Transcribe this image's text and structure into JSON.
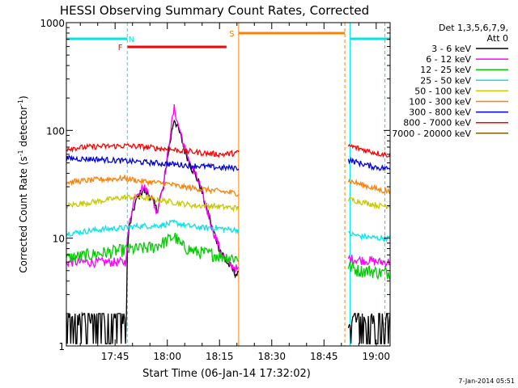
{
  "chart_data": {
    "type": "line",
    "title": "HESSI Observing Summary Count Rates, Corrected",
    "xlabel": "Start Time (06-Jan-14 17:32:02)",
    "ylabel_main": "Corrected Count Rate (s",
    "ylabel_sup1": "-1",
    "ylabel_mid": " detector",
    "ylabel_sup2": "-1",
    "ylabel_end": ")",
    "ylog": true,
    "ylim": [
      1,
      1000
    ],
    "xlim_min": [
      1051,
      1144
    ],
    "x_ticks": [
      {
        "m": 1065,
        "label": "17:45"
      },
      {
        "m": 1080,
        "label": "18:00"
      },
      {
        "m": 1095,
        "label": "18:15"
      },
      {
        "m": 1110,
        "label": "18:30"
      },
      {
        "m": 1125,
        "label": "18:45"
      },
      {
        "m": 1140,
        "label": "19:00"
      }
    ],
    "y_ticks": [
      {
        "v": 1,
        "label": "1"
      },
      {
        "v": 10,
        "label": "10"
      },
      {
        "v": 100,
        "label": "100"
      },
      {
        "v": 1000,
        "label": "1000"
      }
    ],
    "legend": {
      "header1": "Det 1,3,5,6,7,9,",
      "header2": "Att 0",
      "placement": "right"
    },
    "timestamp": "7-Jan-2014 05:51",
    "markers": [
      {
        "label": "N",
        "color": "#00e5e5"
      },
      {
        "label": "F",
        "color": "#ff0000"
      },
      {
        "label": "S",
        "color": "#ff8000"
      }
    ],
    "intervals": {
      "night": [
        [
          1051,
          1068.5
        ],
        [
          1132.5,
          1144
        ]
      ],
      "flare": [
        1068.5,
        1097
      ],
      "saa": [
        1100.5,
        1131
      ]
    },
    "gaps": [
      [
        1100.5,
        1132
      ]
    ],
    "series": [
      {
        "name": "3 - 6 keV",
        "color": "#000000",
        "t": [
          1051,
          1068,
          1069,
          1071,
          1073,
          1075,
          1077,
          1079,
          1080,
          1081,
          1082,
          1083,
          1085,
          1087,
          1089,
          1091,
          1093,
          1095,
          1097,
          1099,
          1100.3,
          1132.2,
          1135,
          1138,
          1141,
          1144
        ],
        "v": [
          1.4,
          1.5,
          12,
          22,
          28,
          25,
          18,
          30,
          55,
          85,
          130,
          105,
          65,
          45,
          33,
          20,
          12,
          8,
          6,
          5,
          4.5,
          1.6,
          1.5,
          1.5,
          1.4,
          1.4
        ]
      },
      {
        "name": "6 - 12 keV",
        "color": "#ff00ff",
        "t": [
          1051,
          1060,
          1068,
          1069,
          1071,
          1073,
          1075,
          1077,
          1079,
          1080,
          1081,
          1082,
          1083,
          1085,
          1087,
          1089,
          1091,
          1093,
          1095,
          1097,
          1099,
          1100.3,
          1132.2,
          1135,
          1138,
          1141,
          1144
        ],
        "v": [
          6,
          6,
          6,
          13,
          26,
          30,
          26,
          17,
          32,
          55,
          100,
          160,
          115,
          68,
          45,
          33,
          20,
          12,
          8,
          6,
          5.5,
          5,
          6.5,
          6.3,
          6.2,
          6,
          6
        ]
      },
      {
        "name": "12 - 25 keV",
        "color": "#00cc00",
        "t": [
          1051,
          1060,
          1068,
          1072,
          1076,
          1080,
          1082,
          1084,
          1088,
          1092,
          1096,
          1100.3,
          1132.2,
          1135,
          1138,
          1141,
          1144
        ],
        "v": [
          6.5,
          7.2,
          7.8,
          8,
          8.3,
          9.5,
          10.5,
          8.5,
          7.5,
          7.2,
          6.8,
          6.5,
          5.5,
          5,
          5,
          4.8,
          4.8
        ]
      },
      {
        "name": "25 - 50 keV",
        "color": "#00e5e5",
        "t": [
          1051,
          1060,
          1068,
          1072,
          1076,
          1080,
          1082,
          1086,
          1090,
          1094,
          1098,
          1100.3,
          1132.2,
          1135,
          1138,
          1141,
          1144
        ],
        "v": [
          11,
          12,
          12.5,
          13,
          13,
          13.5,
          14,
          13,
          12.5,
          12.5,
          12,
          12,
          11,
          10.5,
          10.2,
          10,
          10
        ]
      },
      {
        "name": "50 - 100 keV",
        "color": "#c8c800",
        "t": [
          1051,
          1060,
          1068,
          1072,
          1076,
          1080,
          1084,
          1088,
          1092,
          1096,
          1100.3,
          1132.2,
          1135,
          1138,
          1141,
          1144
        ],
        "v": [
          20,
          22,
          24,
          24,
          23,
          22,
          21,
          20,
          20,
          19.5,
          19,
          23,
          22,
          21,
          20,
          20
        ]
      },
      {
        "name": "100 - 300 keV",
        "color": "#ff8000",
        "t": [
          1051,
          1060,
          1068,
          1072,
          1076,
          1080,
          1084,
          1088,
          1092,
          1096,
          1100.3,
          1132.2,
          1135,
          1138,
          1141,
          1144
        ],
        "v": [
          33,
          35,
          36,
          34,
          33,
          32,
          30,
          29,
          28,
          27,
          26,
          34,
          32,
          30,
          28,
          27
        ]
      },
      {
        "name": "300 - 800 keV",
        "color": "#0000dd",
        "t": [
          1051,
          1060,
          1068,
          1072,
          1076,
          1080,
          1084,
          1088,
          1092,
          1096,
          1100.3,
          1132.2,
          1135,
          1138,
          1141,
          1144
        ],
        "v": [
          55,
          54,
          52,
          51,
          50,
          49,
          48,
          47,
          46,
          45,
          45,
          53,
          50,
          47,
          45,
          44
        ]
      },
      {
        "name": "800 - 7000 keV",
        "color": "#ff0000",
        "t": [
          1051,
          1060,
          1068,
          1072,
          1076,
          1080,
          1084,
          1088,
          1092,
          1096,
          1100.3,
          1132.2,
          1135,
          1138,
          1141,
          1144
        ],
        "v": [
          68,
          71,
          72,
          71,
          69,
          67,
          65,
          63,
          61,
          60,
          62,
          72,
          68,
          64,
          61,
          59
        ]
      },
      {
        "name": "7000 - 20000 keV",
        "color": "#806000",
        "t": [],
        "v": []
      }
    ]
  }
}
